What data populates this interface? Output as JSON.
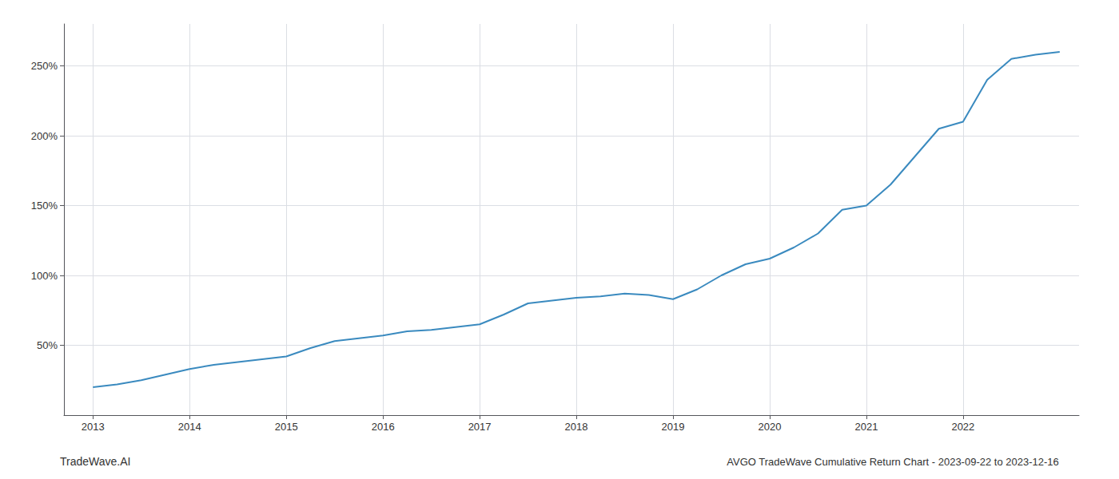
{
  "chart_data": {
    "type": "line",
    "title": "AVGO TradeWave Cumulative Return Chart - 2023-09-22 to 2023-12-16",
    "annotations": [
      "TradeWave.AI"
    ],
    "color": "#3a8abf",
    "x": [
      2013,
      2013.25,
      2013.5,
      2013.75,
      2014,
      2014.25,
      2014.5,
      2014.75,
      2015,
      2015.25,
      2015.5,
      2015.75,
      2016,
      2016.25,
      2016.5,
      2016.75,
      2017,
      2017.25,
      2017.5,
      2017.75,
      2018,
      2018.25,
      2018.5,
      2018.75,
      2019,
      2019.25,
      2019.5,
      2019.75,
      2020,
      2020.25,
      2020.5,
      2020.75,
      2021,
      2021.25,
      2021.5,
      2021.75,
      2022,
      2022.25,
      2022.5,
      2022.75,
      2023
    ],
    "values": [
      20,
      22,
      25,
      29,
      33,
      36,
      38,
      40,
      42,
      48,
      53,
      55,
      57,
      60,
      61,
      63,
      65,
      72,
      80,
      82,
      84,
      85,
      87,
      86,
      83,
      90,
      100,
      108,
      112,
      120,
      130,
      147,
      150,
      165,
      185,
      205,
      210,
      240,
      255,
      258,
      260
    ],
    "xlim": [
      2012.7,
      2023.2
    ],
    "xticks": [
      2013,
      2014,
      2015,
      2016,
      2017,
      2018,
      2019,
      2020,
      2021,
      2022
    ],
    "ylim": [
      0,
      280
    ],
    "yticks": [
      {
        "value": 50,
        "label": "50%"
      },
      {
        "value": 100,
        "label": "100%"
      },
      {
        "value": 150,
        "label": "150%"
      },
      {
        "value": 200,
        "label": "200%"
      },
      {
        "value": 250,
        "label": "250%"
      }
    ],
    "grid": true
  }
}
